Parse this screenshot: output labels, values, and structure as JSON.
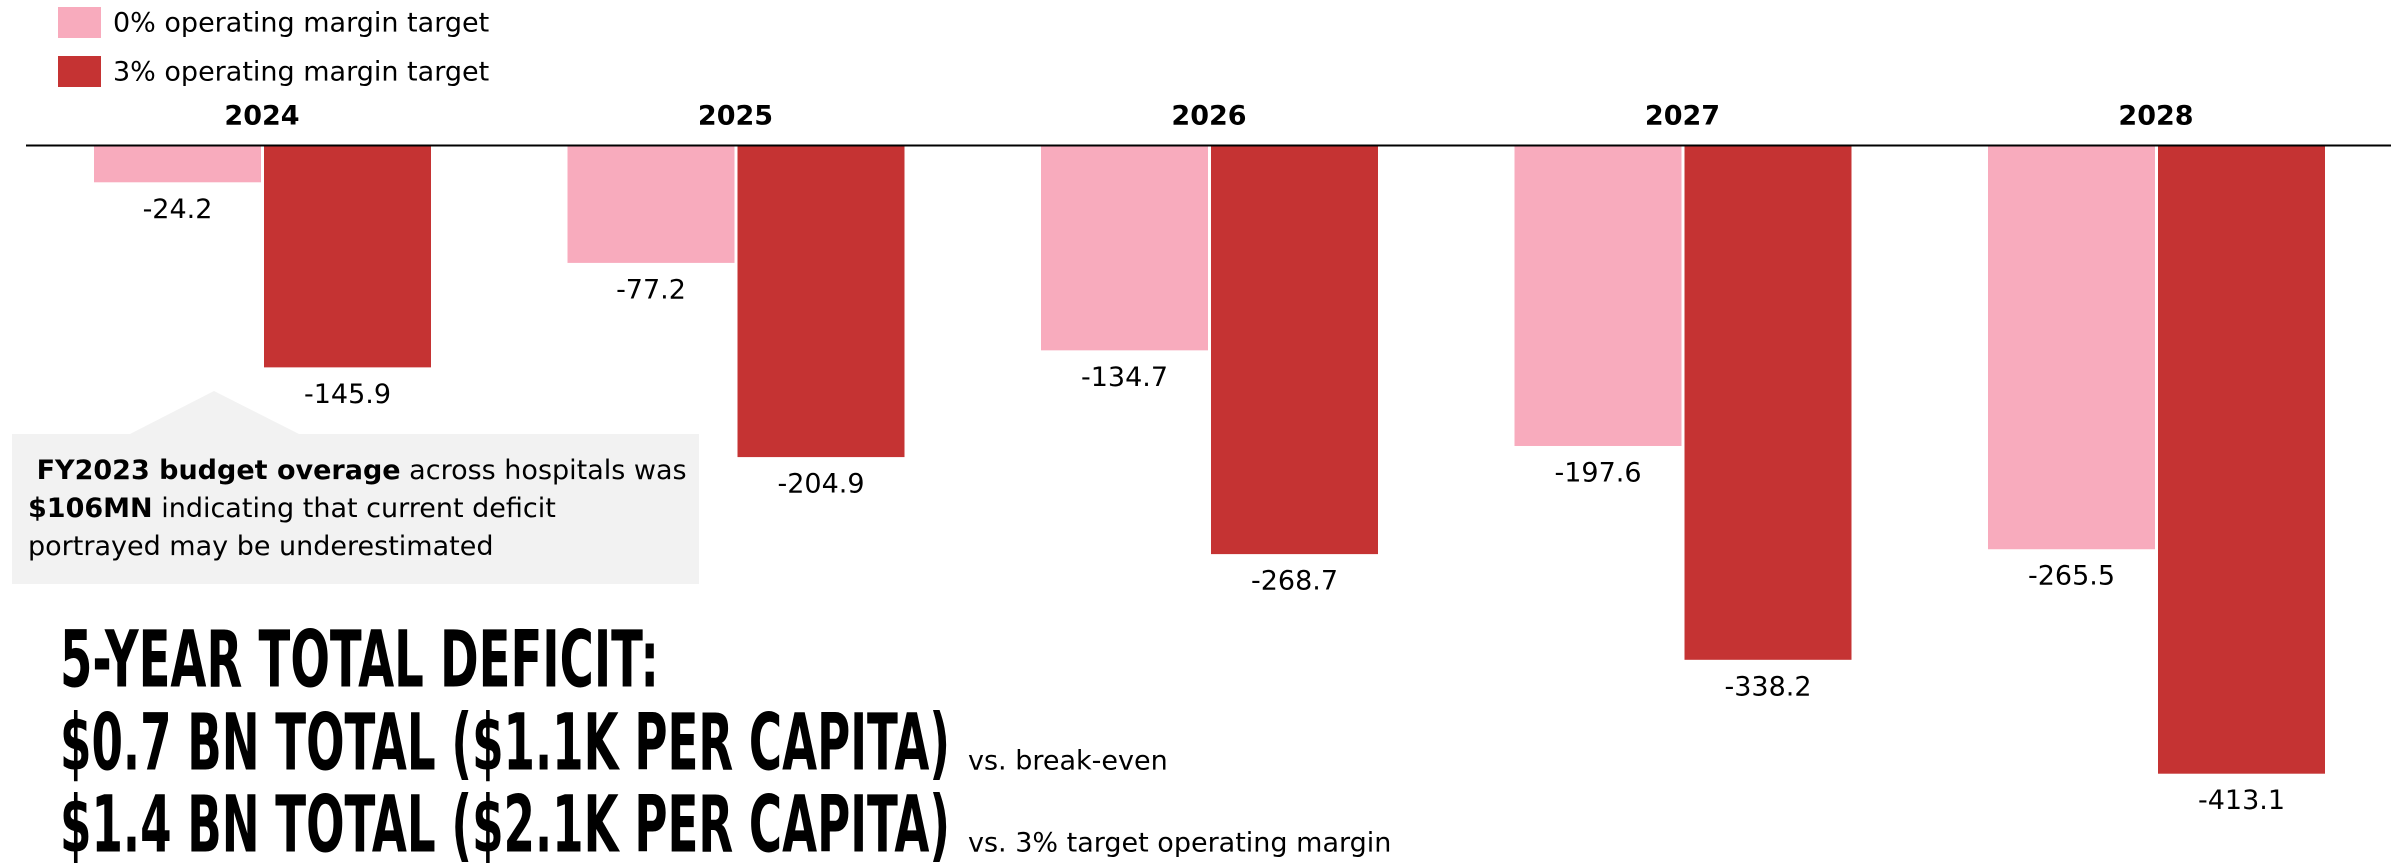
{
  "chart_data": {
    "type": "bar",
    "categories": [
      "2024",
      "2025",
      "2026",
      "2027",
      "2028"
    ],
    "series": [
      {
        "name": "0% operating margin target",
        "color": "#f8abbd",
        "values": [
          -24.2,
          -77.2,
          -134.7,
          -197.6,
          -265.5
        ]
      },
      {
        "name": "3% operating margin target",
        "color": "#c53333",
        "values": [
          -145.9,
          -204.9,
          -268.7,
          -338.2,
          -413.1
        ]
      }
    ],
    "legend": "top-left",
    "annotation": [
      "FY2023 budget overage",
      " across hospitals was ",
      "$106MN",
      " indicating that current deficit portrayed may be underestimated"
    ],
    "summary": {
      "heading": "5-YEAR TOTAL DEFICIT:",
      "lines": [
        {
          "text": "$0.7 BN TOTAL ($1.1K PER CAPITA)",
          "note": "vs. break-even"
        },
        {
          "text": "$1.4 BN TOTAL ($2.1K PER CAPITA)",
          "note": "vs. 3% target operating margin"
        }
      ]
    }
  }
}
